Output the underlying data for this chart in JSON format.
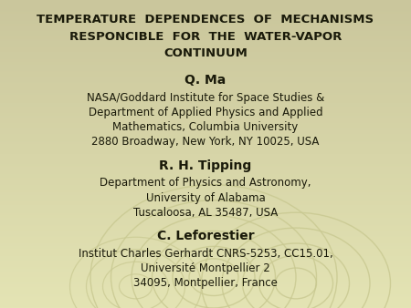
{
  "bg_color": "#d8d8a8",
  "bg_top": "#cac69c",
  "bg_bottom": "#e4e4b4",
  "swirl_color": "#c8c890",
  "title_line1": "TEMPERATURE  DEPENDENCES  OF  MECHANISMS",
  "title_line2": "RESPONCIBLE  FOR  THE  WATER-VAPOR",
  "title_line3": "CONTINUUM",
  "author1_name": "Q. Ma",
  "author1_aff1": "NASA/Goddard Institute for Space Studies &",
  "author1_aff2": "Department of Applied Physics and Applied",
  "author1_aff3": "Mathematics, Columbia University",
  "author1_aff4": "2880 Broadway, New York, NY 10025, USA",
  "author2_name": "R. H. Tipping",
  "author2_aff1": "Department of Physics and Astronomy,",
  "author2_aff2": "University of Alabama",
  "author2_aff3": "Tuscaloosa, AL 35487, USA",
  "author3_name": "C. Leforestier",
  "author3_aff1": "Institut Charles Gerhardt CNRS-5253, CC15.01,",
  "author3_aff2": "Université Montpellier 2",
  "author3_aff3": "34095, Montpellier, France",
  "text_color": "#1a1a0a",
  "title_fontsize": 9.5,
  "name_fontsize": 10.0,
  "aff_fontsize": 8.5
}
